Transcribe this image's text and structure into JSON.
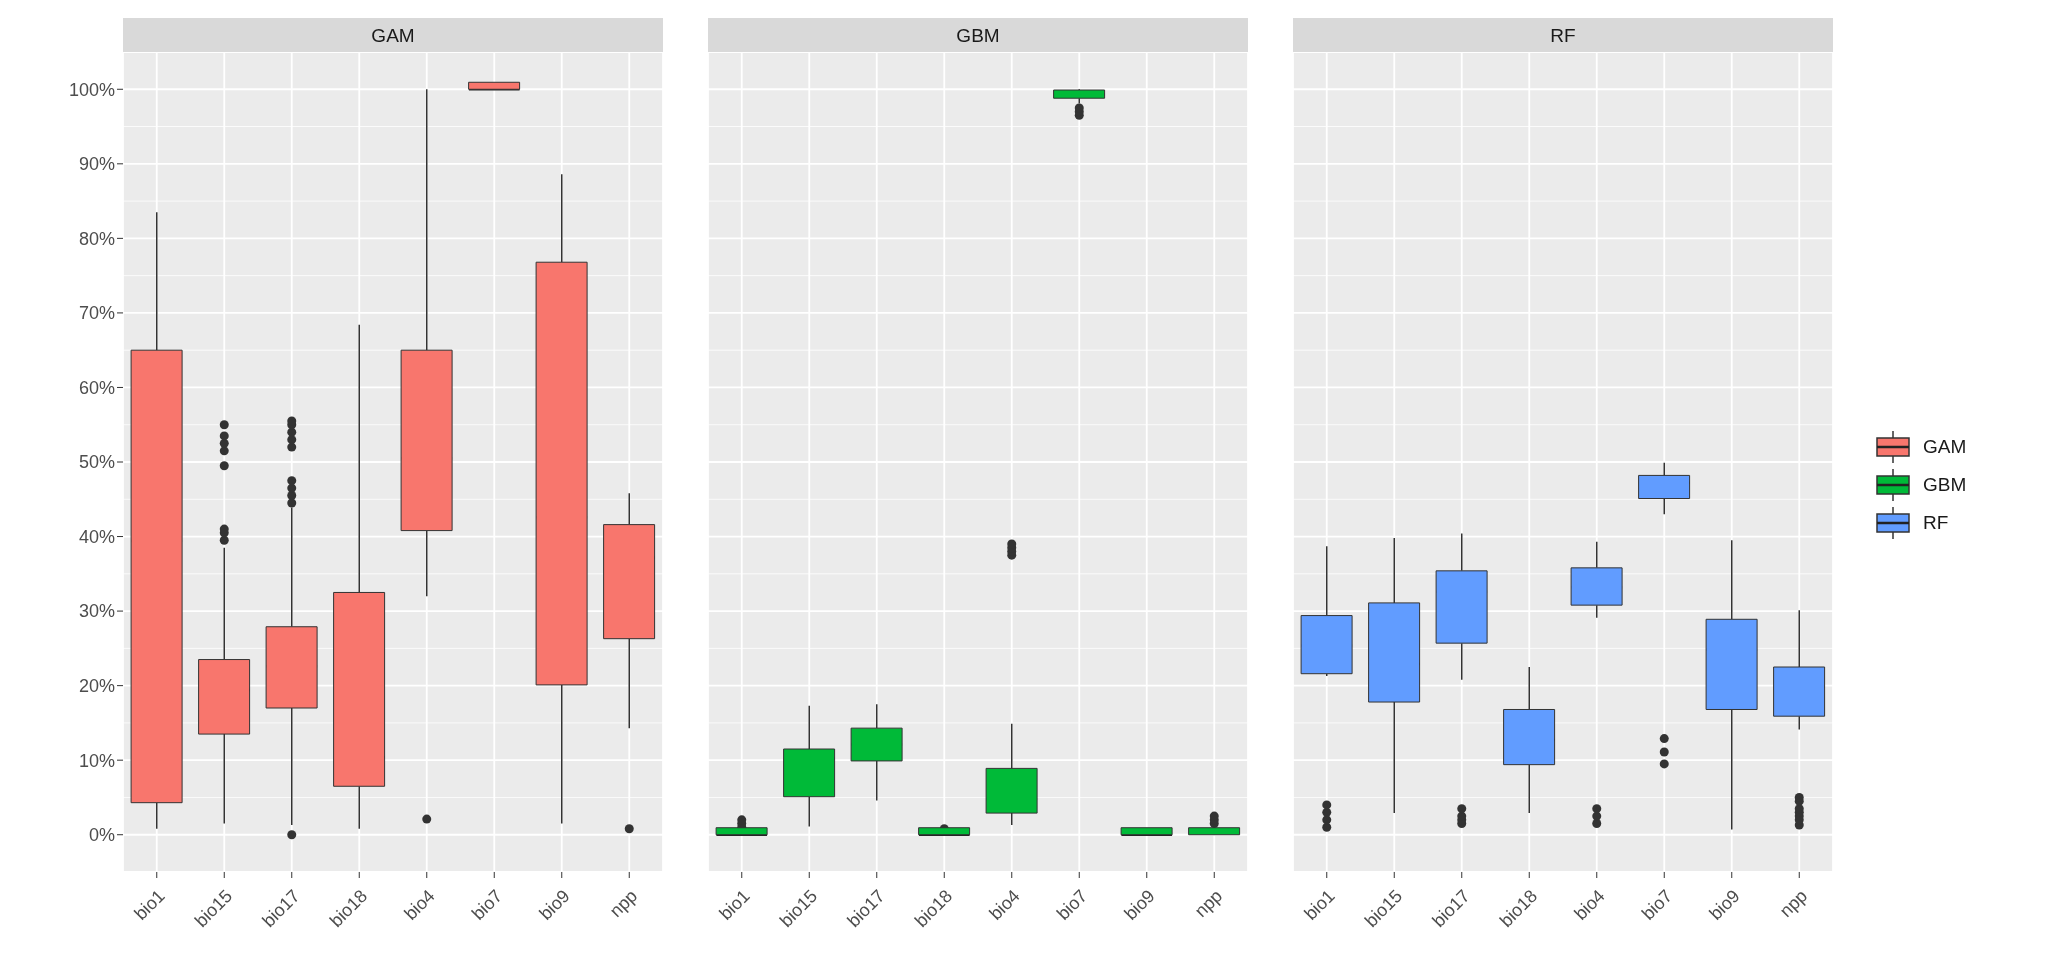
{
  "chart_data": [
    {
      "type": "box",
      "title": "GAM",
      "categories": [
        "bio1",
        "bio15",
        "bio17",
        "bio18",
        "bio4",
        "bio7",
        "bio9",
        "npp"
      ],
      "ylim": [
        -5,
        105
      ],
      "yticks": [
        {
          "value": 0,
          "label": "0%"
        },
        {
          "value": 10,
          "label": "10%"
        },
        {
          "value": 20,
          "label": "20%"
        },
        {
          "value": 30,
          "label": "30%"
        },
        {
          "value": 40,
          "label": "40%"
        },
        {
          "value": 50,
          "label": "50%"
        },
        {
          "value": 60,
          "label": "60%"
        },
        {
          "value": 70,
          "label": "70%"
        },
        {
          "value": 80,
          "label": "80%"
        },
        {
          "value": 90,
          "label": "90%"
        },
        {
          "value": 100,
          "label": "100%"
        }
      ],
      "grid": true,
      "series": [
        {
          "name": "GAM",
          "color": "#f8766d",
          "boxes": [
            {
              "low": 0.8,
              "q1": 4.3,
              "median": 39.4,
              "q3": 65,
              "high": 83.5
            },
            {
              "low": 1.5,
              "q1": 13.5,
              "median": 19.4,
              "q3": 23.5,
              "high": 38.5,
              "outliers": [
                39.5,
                40.5,
                41,
                49.5,
                51.5,
                52.5,
                53.5,
                55
              ]
            },
            {
              "low": 1.3,
              "q1": 17,
              "median": 22.6,
              "q3": 27.9,
              "high": 43.9,
              "outliers": [
                0,
                44.5,
                45.5,
                46.5,
                47.5,
                52,
                53,
                54,
                55,
                55.5
              ]
            },
            {
              "low": 0.8,
              "q1": 6.5,
              "median": 10.4,
              "q3": 32.5,
              "high": 68.4
            },
            {
              "low": 32,
              "q1": 40.8,
              "median": 50.5,
              "q3": 65,
              "high": 100,
              "outliers": [
                2.1
              ]
            },
            {
              "low": 100,
              "q1": 100,
              "median": 100,
              "q3": 100,
              "high": 100
            },
            {
              "low": 1.5,
              "q1": 20.1,
              "median": 42.6,
              "q3": 76.8,
              "high": 88.6
            },
            {
              "low": 14.3,
              "q1": 26.3,
              "median": 37.2,
              "q3": 41.6,
              "high": 45.8,
              "outliers": [
                0.8
              ]
            }
          ]
        }
      ]
    },
    {
      "type": "box",
      "title": "GBM",
      "categories": [
        "bio1",
        "bio15",
        "bio17",
        "bio18",
        "bio4",
        "bio7",
        "bio9",
        "npp"
      ],
      "ylim": [
        -5,
        105
      ],
      "yticks": [
        0,
        10,
        20,
        30,
        40,
        50,
        60,
        70,
        80,
        90,
        100
      ],
      "grid": true,
      "tick_labels": "x",
      "series": [
        {
          "name": "GBM",
          "color": "#00ba38",
          "boxes": [
            {
              "low": 0,
              "q1": 0,
              "median": 0,
              "q3": 0,
              "high": 0,
              "outliers": [
                1,
                1.5,
                2
              ]
            },
            {
              "low": 1.1,
              "q1": 5.1,
              "median": 10.2,
              "q3": 11.5,
              "high": 17.3
            },
            {
              "low": 4.6,
              "q1": 9.9,
              "median": 12.1,
              "q3": 14.3,
              "high": 17.5
            },
            {
              "low": 0,
              "q1": 0,
              "median": 0,
              "q3": 0,
              "high": 0,
              "outliers": [
                0.8
              ]
            },
            {
              "low": 1.3,
              "q1": 2.9,
              "median": 4.8,
              "q3": 8.9,
              "high": 14.9,
              "outliers": [
                37.5,
                38,
                38.5,
                39
              ]
            },
            {
              "low": 98.1,
              "q1": 98.8,
              "median": 99.3,
              "q3": 99.9,
              "high": 100,
              "outliers": [
                96.5,
                97,
                97.5
              ]
            },
            {
              "low": 0,
              "q1": 0,
              "median": 0,
              "q3": 0,
              "high": 0
            },
            {
              "low": 0,
              "q1": 0,
              "median": 0.3,
              "q3": 0.6,
              "high": 1.2,
              "outliers": [
                1.5,
                2,
                2.5
              ]
            }
          ]
        }
      ]
    },
    {
      "type": "box",
      "title": "RF",
      "categories": [
        "bio1",
        "bio15",
        "bio17",
        "bio18",
        "bio4",
        "bio7",
        "bio9",
        "npp"
      ],
      "ylim": [
        -5,
        105
      ],
      "yticks": [
        0,
        10,
        20,
        30,
        40,
        50,
        60,
        70,
        80,
        90,
        100
      ],
      "grid": true,
      "tick_labels": "x",
      "legend": "right",
      "series": [
        {
          "name": "RF",
          "color": "#619cff",
          "boxes": [
            {
              "low": 21.3,
              "q1": 21.6,
              "median": 25.4,
              "q3": 29.4,
              "high": 38.7,
              "outliers": [
                1,
                2,
                3,
                4
              ]
            },
            {
              "low": 2.9,
              "q1": 17.8,
              "median": 22.9,
              "q3": 31.1,
              "high": 39.8
            },
            {
              "low": 20.8,
              "q1": 25.7,
              "median": 32.6,
              "q3": 35.4,
              "high": 40.4,
              "outliers": [
                1.5,
                2,
                2.5,
                3.5
              ]
            },
            {
              "low": 2.9,
              "q1": 9.4,
              "median": 12.7,
              "q3": 16.8,
              "high": 22.5
            },
            {
              "low": 29.1,
              "q1": 30.8,
              "median": 33.2,
              "q3": 35.8,
              "high": 39.3,
              "outliers": [
                1.5,
                2.5,
                3.5
              ]
            },
            {
              "low": 43,
              "q1": 45.1,
              "median": 47.2,
              "q3": 48.2,
              "high": 49.9,
              "outliers": [
                9.5,
                11.1,
                12.9
              ]
            },
            {
              "low": 0.7,
              "q1": 16.8,
              "median": 24.8,
              "q3": 28.9,
              "high": 39.5
            },
            {
              "low": 14.1,
              "q1": 15.9,
              "median": 19.9,
              "q3": 22.5,
              "high": 30.1,
              "outliers": [
                1.3,
                2,
                2.5,
                3,
                3.5,
                4.5,
                5
              ]
            }
          ]
        }
      ]
    }
  ]
}
